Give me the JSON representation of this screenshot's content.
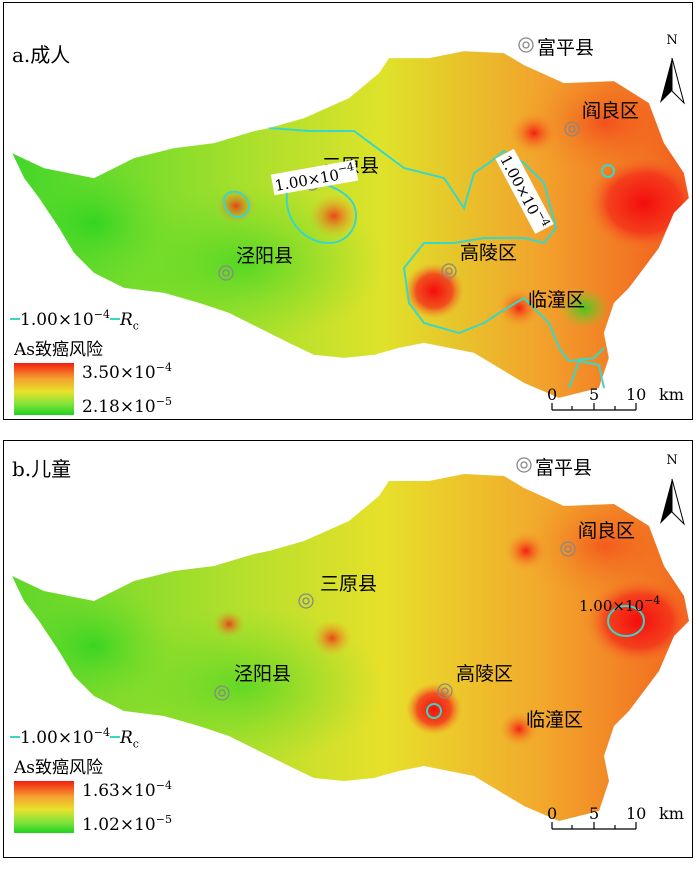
{
  "panels": [
    {
      "id": "a",
      "title": "a.成人",
      "places": {
        "fuping": "富平县",
        "yanliang": "阎良区",
        "sanyuan": "三原县",
        "jingyang": "泾阳县",
        "gaoling": "高陵区",
        "lintong": "临潼区"
      },
      "contour_labels": [
        "1.00×10",
        "1.00×10"
      ],
      "contour_label_exp": "−4",
      "legend": {
        "line_base": "1.00×10",
        "line_exp": "−4",
        "line_suffix": "R",
        "line_sub": "c",
        "title": "As致癌风险",
        "max_base": "3.50×10",
        "max_exp": "−4",
        "min_base": "2.18×10",
        "min_exp": "−5"
      },
      "scale": [
        "0",
        "5",
        "10",
        "km"
      ],
      "north": "N"
    },
    {
      "id": "b",
      "title": "b.儿童",
      "places": {
        "fuping": "富平县",
        "yanliang": "阎良区",
        "sanyuan": "三原县",
        "jingyang": "泾阳县",
        "gaoling": "高陵区",
        "lintong": "临潼区"
      },
      "contour_labels": [
        "1.00×10"
      ],
      "contour_label_exp": "−4",
      "legend": {
        "line_base": "1.00×10",
        "line_exp": "−4",
        "line_suffix": "R",
        "line_sub": "c",
        "title": "As致癌风险",
        "max_base": "1.63×10",
        "max_exp": "−4",
        "min_base": "1.02×10",
        "min_exp": "−5"
      },
      "scale": [
        "0",
        "5",
        "10",
        "km"
      ],
      "north": "N"
    }
  ],
  "colors": {
    "contour": "#3ad6c6",
    "high": "#f31e10",
    "low": "#1fd31f"
  }
}
